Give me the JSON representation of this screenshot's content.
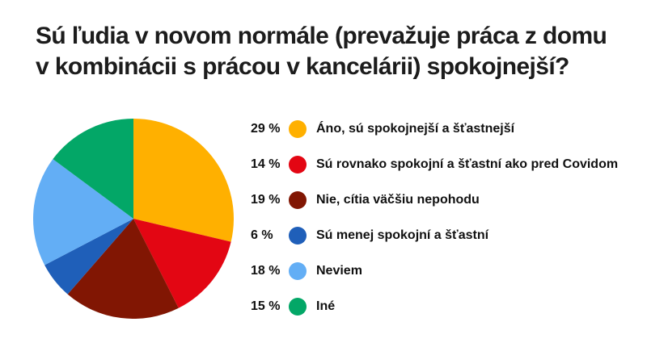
{
  "title": {
    "lines": [
      "Sú ľudia v novom normále (prevažuje práca z domu",
      "v kombinácii s prácou v kancelárii) spokojnejší?"
    ]
  },
  "colors": {
    "background": "#ffffff",
    "title_text": "#1c1c1c",
    "legend_text": "#111111"
  },
  "chart_data": {
    "type": "pie",
    "title": "Sú ľudia v novom normále (prevažuje práca z domu v kombinácii s prácou v kancelárii) spokojnejší?",
    "legend_position": "right",
    "start_angle_deg": 0,
    "direction": "clockwise",
    "slices": [
      {
        "percent_label": "29 %",
        "value_pct": 29,
        "label": "Áno, sú spokojnejší a šťastnejší",
        "color": "#FFB000"
      },
      {
        "percent_label": "14 %",
        "value_pct": 14,
        "label": "Sú rovnako spokojní a šťastní ako pred Covidom",
        "color": "#E30613"
      },
      {
        "percent_label": "19 %",
        "value_pct": 19,
        "label": "Nie, cítia väčšiu nepohodu",
        "color": "#811603"
      },
      {
        "percent_label": "6 %",
        "value_pct": 6,
        "label": "Sú menej spokojní a šťastní",
        "color": "#1F5FB9"
      },
      {
        "percent_label": "18 %",
        "value_pct": 18,
        "label": "Neviem",
        "color": "#63AEF5"
      },
      {
        "percent_label": "15 %",
        "value_pct": 15,
        "label": "Iné",
        "color": "#03A767"
      }
    ]
  }
}
